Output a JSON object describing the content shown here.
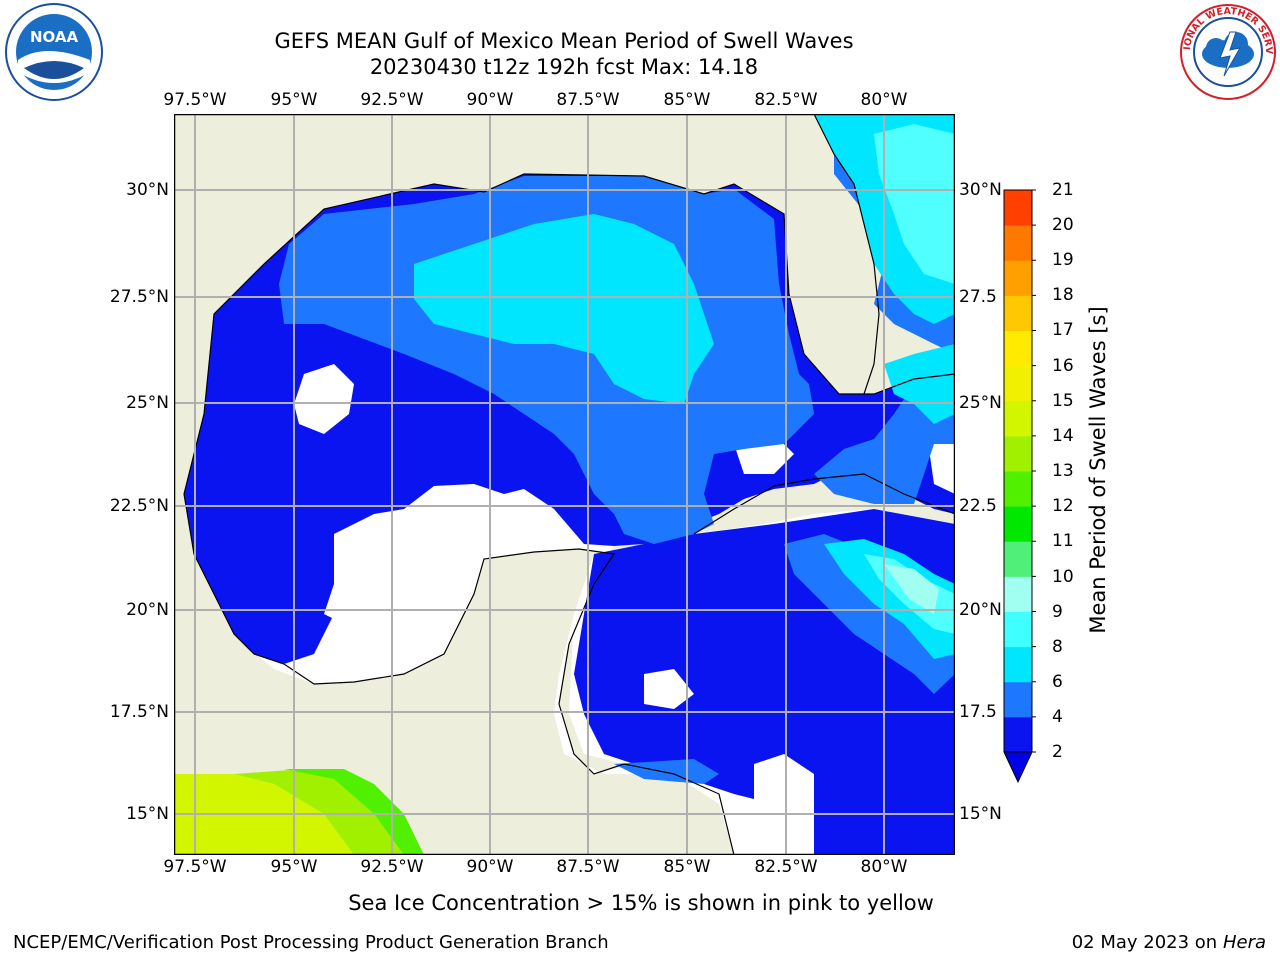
{
  "title": {
    "line1": "GEFS MEAN Gulf of Mexico Mean Period of Swell Waves",
    "line2": "20230430 t12z 192h fcst   Max: 14.18"
  },
  "logos": {
    "left": "NOAA",
    "right": "NATIONAL WEATHER SERVICE"
  },
  "axes": {
    "lon_ticks": [
      "97.5°W",
      "95°W",
      "92.5°W",
      "90°W",
      "87.5°W",
      "85°W",
      "82.5°W",
      "80°W"
    ],
    "lat_ticks_left": [
      "30°N",
      "27.5°N",
      "25°N",
      "22.5°N",
      "20°N",
      "17.5°N",
      "15°N"
    ],
    "lat_ticks_right": [
      "30°N",
      "27.5",
      "25°N",
      "22.5",
      "20°N",
      "17.5",
      "15°N"
    ]
  },
  "colorbar": {
    "label": "Mean Period of Swell Waves [s]",
    "levels": [
      "21",
      "20",
      "19",
      "18",
      "17",
      "16",
      "15",
      "14",
      "13",
      "12",
      "11",
      "10",
      "9",
      "8",
      "6",
      "4",
      "2"
    ],
    "colors_low_to_high": [
      "#0a14f0",
      "#1e78ff",
      "#00e6ff",
      "#40ffff",
      "#a0fff0",
      "#50f078",
      "#00e800",
      "#50f000",
      "#a0f000",
      "#d2f500",
      "#f0f000",
      "#ffea00",
      "#ffc800",
      "#ffa000",
      "#ff7800",
      "#ff4000",
      "#ff0000"
    ],
    "extend_color": "#0000e6"
  },
  "note": "Sea Ice Concentration > 15% is shown in pink to yellow",
  "footer": {
    "left": "NCEP/EMC/Verification Post Processing Product Generation Branch",
    "date": "02 May 2023 on",
    "machine": "Hera"
  },
  "colors": {
    "land": "#eeeedd",
    "swell_low": "#0a14f0",
    "swell_mid": "#1e78ff",
    "swell_high": "#00e6ff",
    "swell_higher": "#50ffff",
    "grid": "#b0b0b0"
  }
}
